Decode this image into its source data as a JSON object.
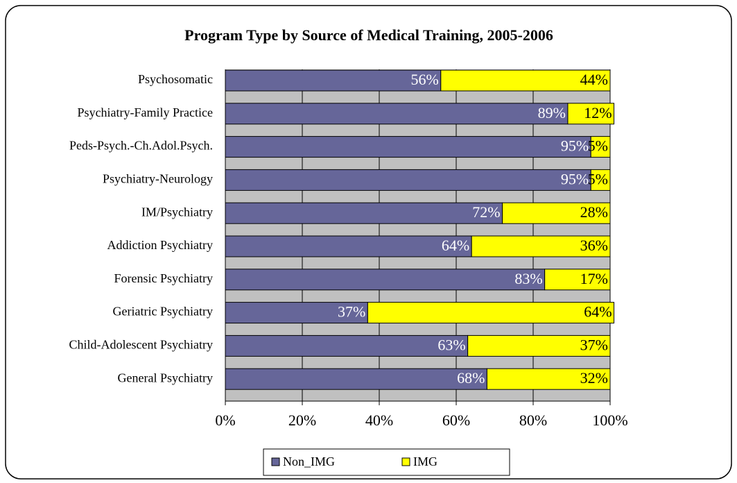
{
  "chart_data": {
    "type": "stacked-barh",
    "title": "Program Type by Source of Medical Training, 2005-2006",
    "categories": [
      "Psychosomatic",
      "Psychiatry-Family Practice",
      "Peds-Psych.-Ch.Adol.Psych.",
      "Psychiatry-Neurology",
      "IM/Psychiatry",
      "Addiction Psychiatry",
      "Forensic Psychiatry",
      "Geriatric Psychiatry",
      "Child-Adolescent Psychiatry",
      "General Psychiatry"
    ],
    "series": [
      {
        "name": "Non_IMG",
        "color": "#666699",
        "values": [
          56,
          89,
          95,
          95,
          72,
          64,
          83,
          37,
          63,
          68
        ],
        "value_labels": [
          "56%",
          "89%",
          "95%",
          "95%",
          "72%",
          "64%",
          "83%",
          "37%",
          "63%",
          "68%"
        ]
      },
      {
        "name": "IMG",
        "color": "#ffff00",
        "values": [
          44,
          12,
          5,
          5,
          28,
          36,
          17,
          64,
          37,
          32
        ],
        "value_labels": [
          "44%",
          "12%",
          "5%",
          "5%",
          "28%",
          "36%",
          "17%",
          "64%",
          "37%",
          "32%"
        ]
      }
    ],
    "xlim": [
      0,
      100
    ],
    "xticks": [
      {
        "value": 0,
        "label": "0%"
      },
      {
        "value": 20,
        "label": "20%"
      },
      {
        "value": 40,
        "label": "40%"
      },
      {
        "value": 60,
        "label": "60%"
      },
      {
        "value": 80,
        "label": "80%"
      },
      {
        "value": 100,
        "label": "100%"
      }
    ],
    "grid": true,
    "legend": "bottom"
  }
}
